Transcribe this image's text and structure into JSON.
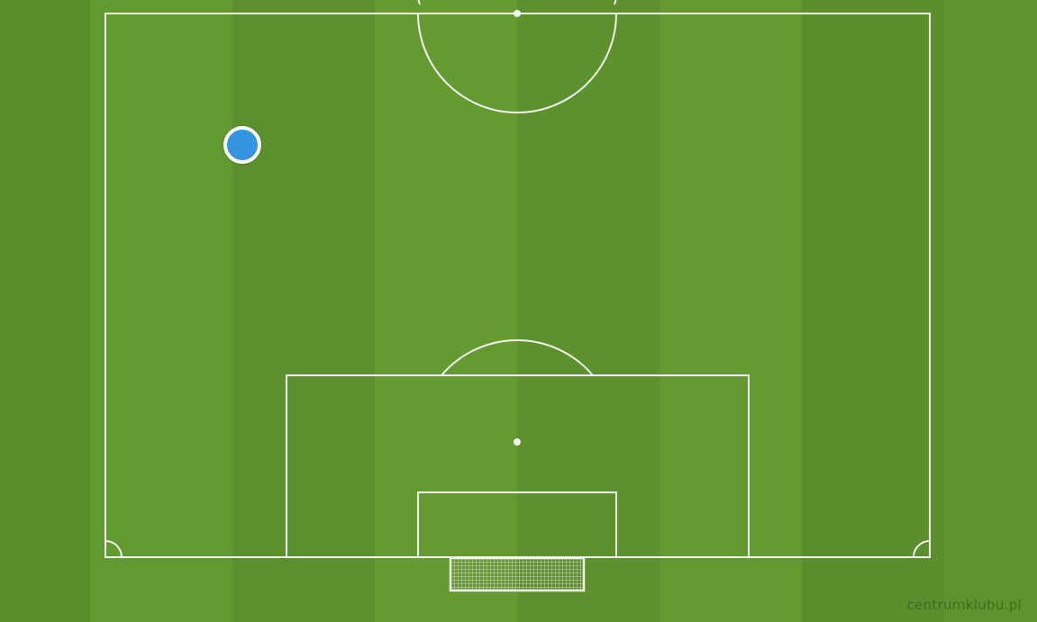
{
  "pitch": {
    "line_color": "#f4f4ee",
    "grass_color": "#5f962f"
  },
  "players": [
    {
      "team_color": "#3795e0"
    }
  ],
  "watermark": {
    "text": "centrumklubu.pl"
  }
}
